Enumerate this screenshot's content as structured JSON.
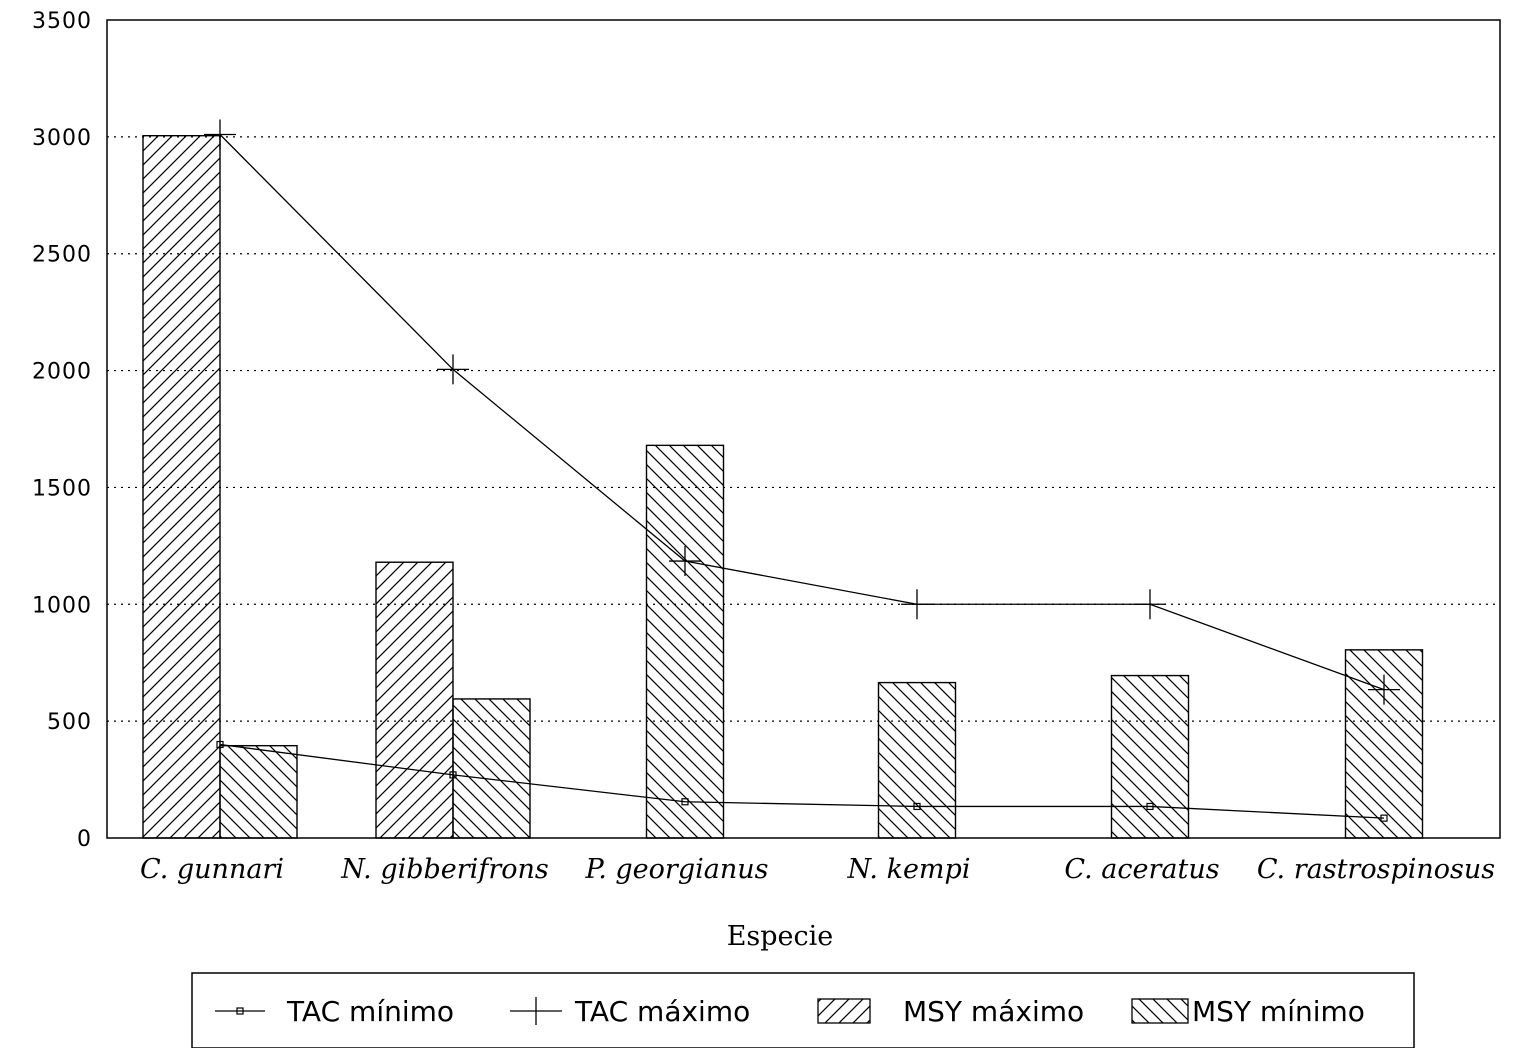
{
  "chart_data": {
    "type": "bar",
    "title": "",
    "xlabel": "Especie",
    "ylabel": "",
    "ylim": [
      0,
      3500
    ],
    "yticks": [
      0,
      500,
      1000,
      1500,
      2000,
      2500,
      3000,
      3500
    ],
    "grid": true,
    "legend_position": "bottom",
    "categories": [
      "C. gunnari",
      "N. gibberifrons",
      "P. georgianus",
      "N. kempi",
      "C. aceratus",
      "C. rastrospinosus"
    ],
    "series": [
      {
        "name": "TAC mínimo",
        "kind": "line",
        "marker": "square",
        "values": [
          400,
          270,
          155,
          135,
          135,
          85
        ]
      },
      {
        "name": "TAC máximo",
        "kind": "line",
        "marker": "plus",
        "values": [
          3010,
          2005,
          1185,
          1000,
          1000,
          635
        ]
      },
      {
        "name": "MSY máximo",
        "kind": "bar",
        "pattern": "forward-hatch",
        "values": [
          3005,
          1180,
          null,
          null,
          null,
          null
        ]
      },
      {
        "name": "MSY mínimo",
        "kind": "bar",
        "pattern": "back-hatch",
        "values": [
          395,
          595,
          1680,
          665,
          695,
          805
        ]
      }
    ],
    "colors": {
      "ink": "#000000",
      "background": "#ffffff"
    }
  }
}
